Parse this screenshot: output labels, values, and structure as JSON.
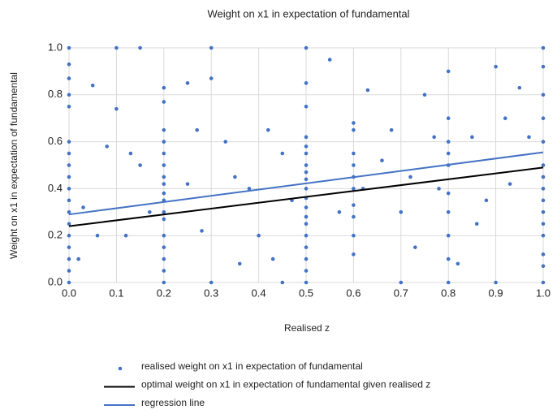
{
  "chart_data": {
    "type": "scatter",
    "title": "Weight on x1 in expectation of fundamental",
    "x_label": "Realised z",
    "y_label": "Weight on x1 in expectation of fundamental",
    "xlim": [
      0,
      1
    ],
    "ylim": [
      0,
      1
    ],
    "xticks": [
      {
        "value": 0,
        "label": "0.0"
      },
      {
        "value": 0.1,
        "label": "0.1"
      },
      {
        "value": 0.2,
        "label": "0.2"
      },
      {
        "value": 0.3,
        "label": "0.3"
      },
      {
        "value": 0.4,
        "label": "0.4"
      },
      {
        "value": 0.5,
        "label": "0.5"
      },
      {
        "value": 0.6,
        "label": "0.6"
      },
      {
        "value": 0.7,
        "label": "0.7"
      },
      {
        "value": 0.8,
        "label": "0.8"
      },
      {
        "value": 0.9,
        "label": "0.9"
      },
      {
        "value": 1,
        "label": "1.0"
      }
    ],
    "yticks": [
      {
        "value": 0,
        "label": "0.0"
      },
      {
        "value": 0.2,
        "label": "0.2"
      },
      {
        "value": 0.4,
        "label": "0.4"
      },
      {
        "value": 0.6,
        "label": "0.6"
      },
      {
        "value": 0.8,
        "label": "0.8"
      },
      {
        "value": 1,
        "label": "1.0"
      }
    ],
    "grid": true,
    "legend": "bottom",
    "series": [
      {
        "name": "realised weight on x1 in expectation of fundamental",
        "type": "scatter",
        "color": "#4472c4",
        "x": [
          0,
          0,
          0,
          0,
          0,
          0,
          0,
          0,
          0,
          0,
          0,
          0,
          0,
          0,
          0,
          0,
          0,
          0,
          0.2,
          0.2,
          0.2,
          0.2,
          0.2,
          0.2,
          0.2,
          0.2,
          0.2,
          0.2,
          0.2,
          0.2,
          0.2,
          0.2,
          0.2,
          0.2,
          0.2,
          0.5,
          0.5,
          0.5,
          0.5,
          0.5,
          0.5,
          0.5,
          0.5,
          0.5,
          0.5,
          0.5,
          0.5,
          0.5,
          0.5,
          0.5,
          0.5,
          0.5,
          0.5,
          0.5,
          1,
          1,
          1,
          1,
          1,
          1,
          1,
          1,
          1,
          1,
          1,
          1,
          1,
          1,
          1,
          0.6,
          0.6,
          0.6,
          0.6,
          0.6,
          0.6,
          0.6,
          0.6,
          0.6,
          0.6,
          0.8,
          0.8,
          0.8,
          0.8,
          0.8,
          0.8,
          0.8,
          0.8,
          0.8,
          0.8,
          0.05,
          0.1,
          0.08,
          0.13,
          0.15,
          0.17,
          0.12,
          0.25,
          0.27,
          0.3,
          0.33,
          0.35,
          0.38,
          0.4,
          0.42,
          0.45,
          0.36,
          0.28,
          0.55,
          0.57,
          0.63,
          0.66,
          0.7,
          0.72,
          0.75,
          0.77,
          0.78,
          0.73,
          0.85,
          0.88,
          0.9,
          0.92,
          0.95,
          0.97,
          0.93,
          0.86,
          0.68,
          0.1,
          0.15,
          0.3,
          0.45,
          0.3,
          0.7,
          0.9,
          0.03,
          0.06,
          0.02,
          0.25,
          0.43,
          0.62,
          0.82,
          0.47
        ],
        "values": [
          1,
          0.93,
          0.87,
          0.8,
          0.75,
          0.6,
          0.55,
          0.5,
          0.45,
          0.4,
          0.35,
          0.3,
          0.25,
          0.2,
          0.15,
          0.1,
          0.05,
          0,
          0.83,
          0.77,
          0.6,
          0.55,
          0.5,
          0.45,
          0.42,
          0.38,
          0.35,
          0.3,
          0.27,
          0.2,
          0.15,
          0.1,
          0.05,
          0,
          0.65,
          0.85,
          0.75,
          0.62,
          0.58,
          0.55,
          0.5,
          0.47,
          0.44,
          0.4,
          0.36,
          0.32,
          0.28,
          0.25,
          0.2,
          0.15,
          0.1,
          0.05,
          0,
          1,
          1,
          0.92,
          0.8,
          0.7,
          0.6,
          0.5,
          0.45,
          0.4,
          0.35,
          0.3,
          0.25,
          0.2,
          0.12,
          0.07,
          0,
          0.68,
          0.65,
          0.55,
          0.5,
          0.45,
          0.4,
          0.33,
          0.28,
          0.2,
          0.12,
          0.9,
          0.7,
          0.6,
          0.5,
          0.38,
          0.3,
          0.2,
          0.1,
          0,
          0.55,
          0.84,
          0.74,
          0.58,
          0.55,
          0.5,
          0.3,
          0.2,
          0.85,
          0.65,
          0.87,
          0.6,
          0.45,
          0.4,
          0.2,
          0.65,
          0.55,
          0.08,
          0.22,
          0.95,
          0.3,
          0.82,
          0.52,
          0.3,
          0.45,
          0.8,
          0.62,
          0.4,
          0.15,
          0.62,
          0.35,
          0.92,
          0.7,
          0.83,
          0.62,
          0.42,
          0.25,
          0.65,
          1,
          1,
          1,
          0,
          0,
          0,
          0,
          0.32,
          0.2,
          0.1,
          0.42,
          0.1,
          0.4,
          0.08,
          0.35
        ]
      },
      {
        "name": "optimal weight on x1 in expectation of fundamental given realised z",
        "type": "line",
        "color": "#000000",
        "x": [
          0,
          1
        ],
        "values": [
          0.24,
          0.49
        ]
      },
      {
        "name": "regression line",
        "type": "line",
        "color": "#4472c4",
        "x": [
          0,
          1
        ],
        "values": [
          0.29,
          0.555
        ]
      }
    ]
  }
}
